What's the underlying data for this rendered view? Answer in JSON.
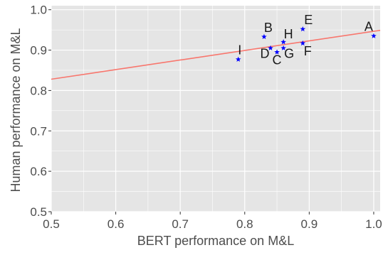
{
  "chart_data": {
    "type": "scatter",
    "title": "",
    "xlabel": "BERT performance on M&L",
    "ylabel": "Human performance on M&L",
    "xlim": [
      0.5,
      1.01
    ],
    "ylim": [
      0.5,
      1.01
    ],
    "x_ticks": [
      0.5,
      0.6,
      0.7,
      0.8,
      0.9,
      1.0
    ],
    "x_tick_labels": [
      "0.5",
      "0.6",
      "0.7",
      "0.8",
      "0.9",
      "1.0"
    ],
    "y_ticks": [
      0.5,
      0.6,
      0.7,
      0.8,
      0.9,
      1.0
    ],
    "y_tick_labels": [
      "0.5",
      "0.6",
      "0.7",
      "0.8",
      "0.9",
      "1.0"
    ],
    "grid": true,
    "points": [
      {
        "label": "A",
        "x": 1.0,
        "y": 0.935
      },
      {
        "label": "B",
        "x": 0.83,
        "y": 0.933
      },
      {
        "label": "C",
        "x": 0.85,
        "y": 0.895
      },
      {
        "label": "D",
        "x": 0.84,
        "y": 0.905
      },
      {
        "label": "E",
        "x": 0.89,
        "y": 0.952
      },
      {
        "label": "F",
        "x": 0.89,
        "y": 0.917
      },
      {
        "label": "G",
        "x": 0.86,
        "y": 0.905
      },
      {
        "label": "H",
        "x": 0.86,
        "y": 0.92
      },
      {
        "label": "I",
        "x": 0.79,
        "y": 0.877
      }
    ],
    "trend_line": {
      "x": [
        0.5,
        1.01
      ],
      "y": [
        0.828,
        0.949
      ]
    },
    "colors": {
      "panel": "#e5e5e5",
      "grid": "#ffffff",
      "points": "#0000ff",
      "trend_line": "#f8766d"
    }
  }
}
